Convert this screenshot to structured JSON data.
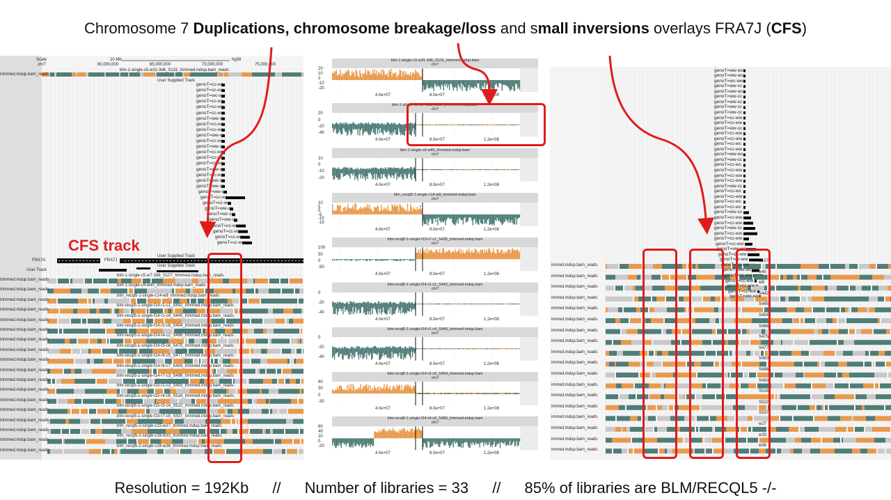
{
  "slide": {
    "title_parts": [
      {
        "text": "Chromosome 7 ",
        "bold": false
      },
      {
        "text": "Duplications, chromosome breakage/loss",
        "bold": true
      },
      {
        "text": " and s",
        "bold": false
      },
      {
        "text": "mall inversions",
        "bold": true
      },
      {
        "text": " overlays FRA7J (",
        "bold": false
      },
      {
        "text": "CFS",
        "bold": true
      },
      {
        "text": ")",
        "bold": false
      }
    ],
    "footer": {
      "resolution": "Resolution = 192Kb",
      "sep1": "//",
      "libraries": "Number of libraries =  33",
      "sep2": "//",
      "percent": "85% of libraries are BLM/RECQL5 -/-"
    },
    "cfs_track_label": "CFS track"
  },
  "left_panel": {
    "scale_label": "Scale",
    "chrom_label": "chr7",
    "scale_bar": "10 Mb",
    "assembly": "hg38",
    "positions": [
      "60,000,000",
      "65,000,000",
      "70,000,000",
      "75,000,000"
    ],
    "top_track_label": "trimmed.mdup.bam_reads",
    "top_track_name": "blm-1-single-c5-w31-3d6_S131_trimmed.mdup.bam_reads",
    "user_supplied_track": "User Supplied Track",
    "geno_labels": [
      "genoT=cc-wc",
      "genoT=cc-wc",
      "genoT=wc-ww",
      "genoT=cc-wc",
      "genoT=cc-wc",
      "genoT=cc-wc",
      "genoT=ww-cc",
      "genoT=cc-ww",
      "genoT=cc-ww",
      "genoT=ww-cc",
      "genoT=cc-ww",
      "genoT=ww-cc",
      "genoT=cc-wc",
      "genoT=cc-ww",
      "genoT=cc-ww",
      "genoT=ww-cc",
      "genoT=cc-ww",
      "genoT=ww-cc",
      "genoT=ww-cc",
      "genoT=ww-cc",
      "genoT=cc-ww",
      "genoT=cc-ww",
      "genoT=ww-cc",
      "genoT=wc-cc",
      "genoT=ww-cc",
      "genoT=cc-ww",
      "genoT=cc-ww",
      "genoT=cc-wc",
      "genoT=cc-ww"
    ],
    "fra_labels": [
      "FRA7A",
      "FRA7J"
    ],
    "user_track_label": "User Track",
    "lower_track_names": [
      "blm-1-single-c5-w7-3d6_S107_trimmed.mdup.bam_reads",
      "blm-1-single-c9-w40_trimmed.mdup.bam_reads",
      "blm_recql5-1-single-c14-w9_trimmed.mdup.bam_reads",
      "blm-recql5-1-single-f14-r1-c1_S442_trimmed.mdup.bam_reads",
      "blm-recql5-1-single-f14-r1-c4_S445_trimmed.mdup.bam_reads",
      "blm-recql5-1-single-f14-r2-c6_S454_trimmed.mdup.bam_reads",
      "blm-recql5-1-single-f14-r4-c2_S466_trimmed.mdup.bam_reads",
      "blm-recql5-1-single-f14-r5-c6_S475_trimmed.mdup.bam_reads",
      "blm-recql5-1-single-f14-r6-c5_S477_trimmed.mdup.bam_reads",
      "blm-recql5-1-single-f14-r6-c7_S483_trimmed.mdup.bam_reads",
      "blm-recql5-1-single-f14-r7-c3_S486_trimmed.mdup.bam_reads",
      "blm-recql5-1-single-f15-r1-c3_S493_trimmed.mdup.bam_reads",
      "blm-recql5-1-single-f15-r4-c6_S516_trimmed.mdup.bam_reads",
      "blm-recql5-1-single-f15-r5-c4_S522_trimmed.mdup.bam_reads",
      "blm-recql5-1-single-f15-r7-c5_S537_trimmed.mdup.bam_reads",
      "blm_recql5-2-single-c15-w27_trimmed.mdup.bam_reads",
      "blm_recql5-2-single-c16-w33_trimmed.mdup.bam_reads",
      "blm_recql5-2-single-c16-w36_trimmed.mdup.bam_reads"
    ],
    "row_label": "trimmed.mdup.bam_reads"
  },
  "middle_panel": {
    "chrom": "chr7",
    "x_ticks": [
      "4.0e+07",
      "8.0e+07",
      "1.2e+08"
    ],
    "plots": [
      {
        "title": "blm-1-single-c5-w31-3d6_S131_trimmed.mdup.bam",
        "yticks": [
          "20",
          "10",
          "0",
          "-10",
          "-20"
        ],
        "pattern": "split"
      },
      {
        "title": "blm-1-single-c5-w7-3d6_S107_trimmed.mdup.bam",
        "yticks": [
          "20",
          "0",
          "-20",
          "-40"
        ],
        "pattern": "loss"
      },
      {
        "title": "blm-1-single-c9-w40_trimmed.mdup.bam",
        "yticks": [
          "10",
          "0",
          "-10",
          "-20"
        ],
        "pattern": "loss"
      },
      {
        "title": "blm_recql5-1-single-c14-w9_trimmed.mdup.bam",
        "yticks": [
          "10",
          "5",
          "0",
          "-5",
          "-10",
          "-15"
        ],
        "pattern": "split"
      },
      {
        "title": "blm-recql5-1-single-f13-r7-c1_S435_trimmed.mdup.bam",
        "yticks": [
          "100",
          "50",
          "0",
          "-50"
        ],
        "pattern": "dup"
      },
      {
        "title": "blm-recql5-1-single-f14-r1-c1_S442_trimmed.mdup.bam",
        "yticks": [
          "0",
          "-20",
          "-40"
        ],
        "pattern": "loss"
      },
      {
        "title": "blm-recql5-1-single-f14-r1-c4_S445_trimmed.mdup.bam",
        "yticks": [
          "0",
          "-20",
          "-40"
        ],
        "pattern": "loss"
      },
      {
        "title": "blm-recql5-1-single-f14-r2-c6_S454_trimmed.mdup.bam",
        "yticks": [
          "60",
          "30",
          "0",
          "-30"
        ],
        "pattern": "orange_loss"
      },
      {
        "title": "blm-recql5-1-single-f14-r4-c6_S466_trimmed.mdup.bam",
        "yticks": [
          "60",
          "40",
          "20",
          "0",
          "-20"
        ],
        "pattern": "mixed"
      }
    ]
  },
  "right_panel": {
    "geno_labels": [
      "genoT=ww-cc",
      "genoT=ww-wc",
      "genoT=ww-wc",
      "genoT=wc-ww",
      "genoT=ww-cc",
      "genoT=ww-wc",
      "genoT=ww-cc",
      "genoT=ww-cc",
      "genoT=ww-cc",
      "genoT=ww-cc",
      "genoT=cc-ww",
      "genoT=cc-ww",
      "genoT=ww-cc",
      "genoT=cc-ww",
      "genoT=cc-ww",
      "genoT=cc-wc",
      "genoT=cc-ww",
      "genoT=ww-wc",
      "genoT=ww-cc",
      "genoT=cc-wc",
      "genoT=cc-ww",
      "genoT=cc-ww",
      "genoT=cc-ww",
      "genoT=ww-cc",
      "genoT=cc-wc",
      "genoT=cc-ww",
      "genoT=cc-wc",
      "genoT=cc-wc",
      "genoT=ww-cc",
      "genoT=cc-ww",
      "genoT=cc-ww",
      "genoT=ww-cc",
      "genoT=cc-ww",
      "genoT=cc-ww",
      "genoT=cc-ww",
      "genoT=ww-wc",
      "genoT=cc-ww",
      "genoT=cc-ww",
      "genoT=cc-ww",
      "genoT=ww-wc",
      "genoT=cc-ww",
      "genoT=cc-ww",
      "genoT=cc-ww",
      "genoT=cc-ww",
      "genoT=ww-wc"
    ],
    "row_label": "immed.mdup.bam_reads",
    "inner_names": [
      "S107",
      "w40",
      "w9",
      "S442",
      "S445",
      "S454",
      "S466",
      "S475",
      "S477",
      "S483",
      "S486",
      "S493",
      "S516",
      "S522",
      "S537",
      "w27",
      "w33",
      "w36"
    ]
  },
  "colors": {
    "teal": "#4f7d77",
    "orange": "#e89a4c",
    "highlight_red": "#e01b1b",
    "gray_bg": "#e9e9e9"
  }
}
